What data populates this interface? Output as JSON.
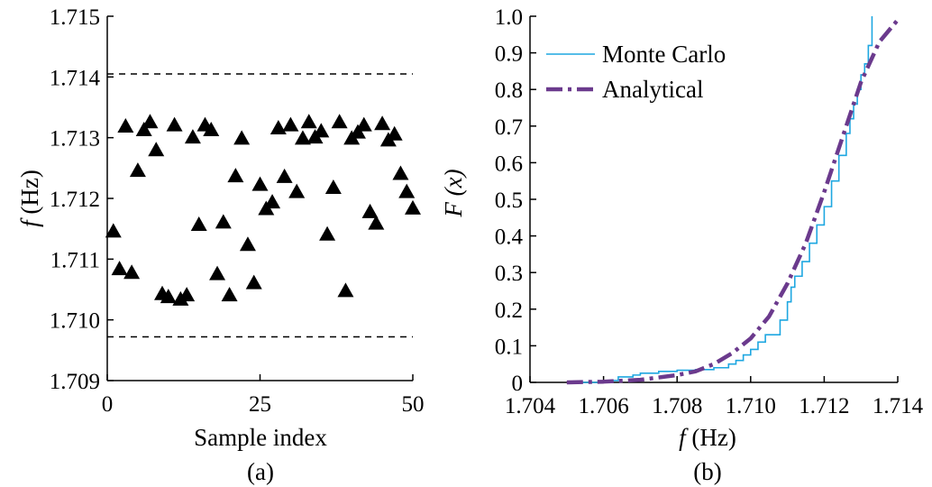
{
  "chart_data": [
    {
      "panel_label": "(a)",
      "type": "scatter",
      "xlabel": "Sample index",
      "ylabel": {
        "symbol": "f",
        "unit": "(Hz)"
      },
      "xlim": [
        0,
        50
      ],
      "ylim": [
        1.709,
        1.715
      ],
      "xticks": [
        "0",
        "25",
        "50"
      ],
      "yticks": [
        "1.709",
        "1.710",
        "1.711",
        "1.712",
        "1.713",
        "1.714",
        "1.715"
      ],
      "bounds": [
        1.70972,
        1.71405
      ],
      "marker": "filled-triangle",
      "marker_color": "#000000",
      "x": [
        1,
        2,
        3,
        4,
        5,
        6,
        7,
        8,
        9,
        10,
        11,
        12,
        13,
        14,
        15,
        16,
        17,
        18,
        19,
        20,
        21,
        22,
        23,
        24,
        25,
        26,
        27,
        28,
        29,
        30,
        31,
        32,
        33,
        34,
        35,
        36,
        37,
        38,
        39,
        40,
        41,
        42,
        43,
        44,
        45,
        46,
        47,
        48,
        49,
        50
      ],
      "y": [
        1.71145,
        1.71083,
        1.71318,
        1.71077,
        1.71245,
        1.71312,
        1.71325,
        1.71279,
        1.71042,
        1.71037,
        1.7132,
        1.71033,
        1.7104,
        1.713,
        1.71156,
        1.7132,
        1.71312,
        1.71075,
        1.7116,
        1.7104,
        1.71236,
        1.71298,
        1.71123,
        1.7106,
        1.71222,
        1.71182,
        1.71193,
        1.71315,
        1.71235,
        1.7132,
        1.7121,
        1.71298,
        1.71325,
        1.713,
        1.7131,
        1.7114,
        1.71217,
        1.71325,
        1.71047,
        1.71298,
        1.71308,
        1.7132,
        1.71177,
        1.71158,
        1.71322,
        1.71295,
        1.71305,
        1.7124,
        1.7121,
        1.71183
      ]
    },
    {
      "panel_label": "(b)",
      "type": "line",
      "xlabel": {
        "symbol": "f",
        "unit": "(Hz)"
      },
      "ylabel": {
        "symbol": "F",
        "arg": "(x)"
      },
      "xlim": [
        1.704,
        1.714
      ],
      "ylim": [
        0,
        1.0
      ],
      "xticks": [
        "1.704",
        "1.706",
        "1.708",
        "1.710",
        "1.712",
        "1.714"
      ],
      "yticks": [
        "0",
        "0.1",
        "0.2",
        "0.3",
        "0.4",
        "0.5",
        "0.6",
        "0.7",
        "0.8",
        "0.9",
        "1.0"
      ],
      "legend_position": "top-left",
      "series": [
        {
          "name": "Monte Carlo",
          "color": "#1ea7e1",
          "style": "solid-thin",
          "x": [
            1.7052,
            1.7062,
            1.7064,
            1.7068,
            1.707,
            1.7075,
            1.708,
            1.7085,
            1.709,
            1.7094,
            1.7096,
            1.7098,
            1.71,
            1.7102,
            1.7104,
            1.7106,
            1.7108,
            1.711,
            1.7111,
            1.7112,
            1.7114,
            1.7116,
            1.7118,
            1.712,
            1.7122,
            1.7124,
            1.7126,
            1.7127,
            1.7128,
            1.7129,
            1.713,
            1.713,
            1.7131,
            1.7132,
            1.7133,
            1.7133
          ],
          "y": [
            0.0,
            0.005,
            0.015,
            0.02,
            0.025,
            0.03,
            0.033,
            0.035,
            0.04,
            0.05,
            0.06,
            0.075,
            0.09,
            0.11,
            0.13,
            0.13,
            0.17,
            0.22,
            0.26,
            0.29,
            0.33,
            0.38,
            0.43,
            0.48,
            0.55,
            0.62,
            0.68,
            0.72,
            0.76,
            0.8,
            0.82,
            0.84,
            0.87,
            0.92,
            0.97,
            1.0
          ]
        },
        {
          "name": "Analytical",
          "color": "#6b3a8d",
          "style": "dash-dot-thick",
          "x": [
            1.705,
            1.706,
            1.707,
            1.708,
            1.7085,
            1.709,
            1.7095,
            1.71,
            1.7105,
            1.711,
            1.7115,
            1.712,
            1.7125,
            1.713,
            1.7135,
            1.714
          ],
          "y": [
            0.0,
            0.002,
            0.007,
            0.02,
            0.03,
            0.05,
            0.08,
            0.12,
            0.18,
            0.27,
            0.38,
            0.52,
            0.67,
            0.82,
            0.93,
            0.99
          ]
        }
      ]
    }
  ]
}
